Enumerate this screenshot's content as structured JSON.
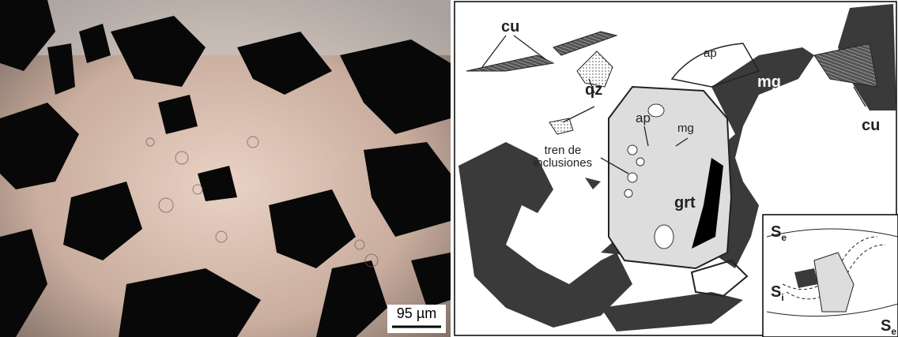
{
  "photo": {
    "scale_bar": "95 µm"
  },
  "sketch": {
    "labels": {
      "cu_left": "cu",
      "qz": "qz",
      "ap_top": "ap",
      "mg_right": "mg",
      "cu_right": "cu",
      "ap_inner": "ap",
      "mg_inner": "mg",
      "tren_line1": "tren de",
      "tren_line2": "inclusiones",
      "grt": "grt"
    },
    "inset": {
      "se_top": {
        "main": "S",
        "sub": "e"
      },
      "si": {
        "main": "S",
        "sub": "i"
      },
      "se_bottom": {
        "main": "S",
        "sub": "e"
      }
    }
  }
}
